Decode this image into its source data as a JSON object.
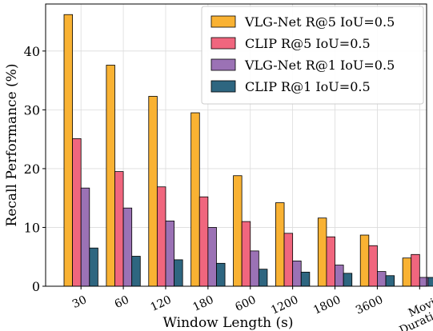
{
  "chart_data": {
    "type": "bar",
    "categories": [
      "30",
      "60",
      "120",
      "180",
      "600",
      "1200",
      "1800",
      "3600",
      "Movie Duration"
    ],
    "category_lines": [
      [
        "30"
      ],
      [
        "60"
      ],
      [
        "120"
      ],
      [
        "180"
      ],
      [
        "600"
      ],
      [
        "1200"
      ],
      [
        "1800"
      ],
      [
        "3600"
      ],
      [
        "Movie",
        "Duration"
      ]
    ],
    "series": [
      {
        "name": "VLG-Net R@5 IoU=0.5",
        "color": "#f9b233",
        "values": [
          46.2,
          37.6,
          32.3,
          29.5,
          18.8,
          14.2,
          11.6,
          8.7,
          4.8
        ]
      },
      {
        "name": "CLIP R@5 IoU=0.5",
        "color": "#f0667e",
        "values": [
          25.1,
          19.5,
          16.9,
          15.2,
          11.0,
          9.0,
          8.4,
          6.9,
          5.4
        ]
      },
      {
        "name": "VLG-Net R@1 IoU=0.5",
        "color": "#9b72b5",
        "values": [
          16.7,
          13.3,
          11.1,
          10.0,
          6.0,
          4.3,
          3.6,
          2.5,
          1.5
        ]
      },
      {
        "name": "CLIP R@1 IoU=0.5",
        "color": "#2e6680",
        "values": [
          6.5,
          5.1,
          4.5,
          3.9,
          2.9,
          2.4,
          2.2,
          1.8,
          1.5
        ]
      }
    ],
    "xlabel": "Window Length (s)",
    "ylabel": "Recall Performance (%)",
    "ylim": [
      0,
      48
    ],
    "yticks": [
      0,
      10,
      20,
      30,
      40
    ],
    "grid": true,
    "legend_position": "top-right"
  }
}
